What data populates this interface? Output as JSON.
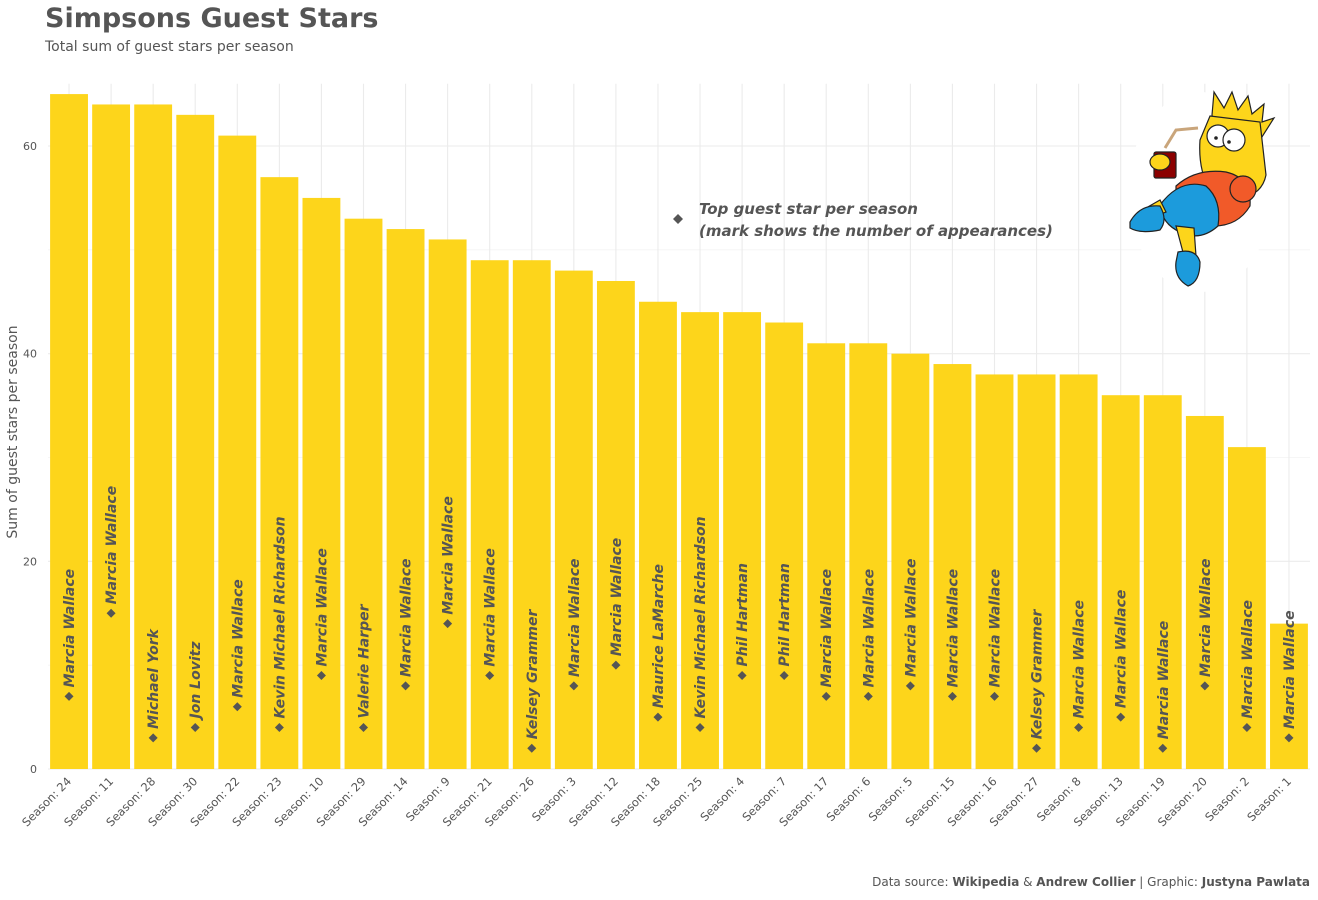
{
  "title": "Simpsons Guest Stars",
  "subtitle": "Total sum of guest stars per season",
  "legend": {
    "line1": "Top guest star per season",
    "line2": "(mark shows the number of appearances)"
  },
  "caption": {
    "prefix": "Data source: ",
    "source1": "Wikipedia",
    "amp": " & ",
    "source2": "Andrew Collier",
    "mid": " | Graphic: ",
    "author": "Justyna Pawlata"
  },
  "colors": {
    "bar": "#FDD51B",
    "text": "#555555",
    "marker": "#555555",
    "grid": "#ebebeb"
  },
  "icons": {
    "illustration": "bart-simpson-illustration",
    "marker": "diamond-marker"
  },
  "chart_data": {
    "type": "bar",
    "title": "Simpsons Guest Stars",
    "subtitle": "Total sum of guest stars per season",
    "xlabel": "",
    "ylabel": "Sum of guest stars per season",
    "ylim": [
      0,
      66
    ],
    "yticks": [
      0,
      20,
      40,
      60
    ],
    "grid": true,
    "categories": [
      "Season: 24",
      "Season: 11",
      "Season: 28",
      "Season: 30",
      "Season: 22",
      "Season: 23",
      "Season: 10",
      "Season: 29",
      "Season: 14",
      "Season: 9",
      "Season: 21",
      "Season: 26",
      "Season: 3",
      "Season: 12",
      "Season: 18",
      "Season: 25",
      "Season: 4",
      "Season: 7",
      "Season: 17",
      "Season: 6",
      "Season: 5",
      "Season: 15",
      "Season: 16",
      "Season: 27",
      "Season: 8",
      "Season: 13",
      "Season: 19",
      "Season: 20",
      "Season: 2",
      "Season: 1"
    ],
    "values": [
      65,
      64,
      64,
      63,
      61,
      57,
      55,
      53,
      52,
      51,
      49,
      49,
      48,
      47,
      45,
      44,
      44,
      43,
      41,
      41,
      40,
      39,
      38,
      38,
      38,
      36,
      36,
      34,
      31,
      14
    ],
    "top_guest_star": [
      "Marcia Wallace",
      "Marcia Wallace",
      "Michael York",
      "Jon Lovitz",
      "Marcia Wallace",
      "Kevin Michael Richardson",
      "Marcia Wallace",
      "Valerie Harper",
      "Marcia Wallace",
      "Marcia Wallace",
      "Marcia Wallace",
      "Kelsey Grammer",
      "Marcia Wallace",
      "Marcia Wallace",
      "Maurice LaMarche",
      "Kevin Michael Richardson",
      "Phil Hartman",
      "Phil Hartman",
      "Marcia Wallace",
      "Marcia Wallace",
      "Marcia Wallace",
      "Marcia Wallace",
      "Marcia Wallace",
      "Kelsey Grammer",
      "Marcia Wallace",
      "Marcia Wallace",
      "Marcia Wallace",
      "Marcia Wallace",
      "Marcia Wallace",
      "Marcia Wallace"
    ],
    "top_guest_star_appearances": [
      7,
      15,
      3,
      4,
      6,
      4,
      9,
      4,
      8,
      14,
      9,
      2,
      8,
      10,
      5,
      4,
      9,
      9,
      7,
      7,
      8,
      7,
      7,
      2,
      4,
      5,
      2,
      8,
      4,
      3
    ]
  }
}
